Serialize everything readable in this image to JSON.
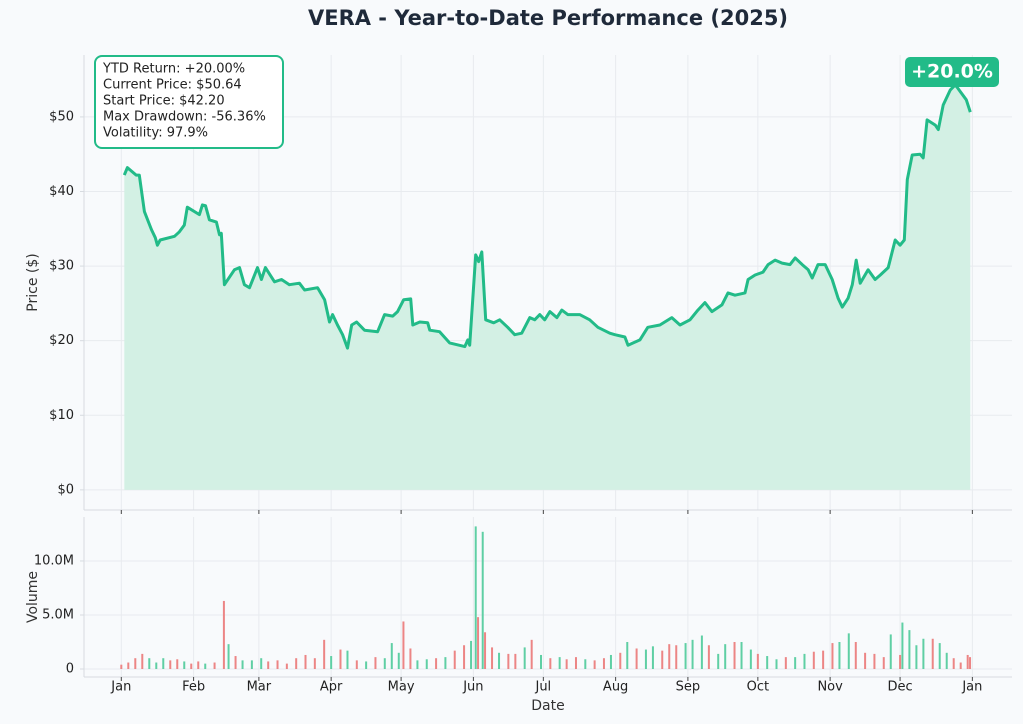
{
  "chart_data": [
    {
      "type": "line",
      "title": "VERA - Year-to-Date Performance (2025)",
      "ylabel": "Price ($)",
      "stats": [
        "YTD Return: +20.00%",
        "Current Price: $50.64",
        "Start Price: $42.20",
        "Max Drawdown: -56.36%",
        "Volatility: 97.9%"
      ],
      "badge": "+20.0%",
      "color": "#22bb88",
      "fill_color": "#d3f0e4",
      "grid": true,
      "x": [
        1.3,
        2.6,
        6.4,
        7.7,
        9.9,
        12.9,
        14.6,
        15.5,
        16.7,
        22.8,
        24.9,
        27,
        28.3,
        33.5,
        34.8,
        36.1,
        37.8,
        40.8,
        42.1,
        42.9,
        44.2,
        48.5,
        50.7,
        52.8,
        55,
        58.4,
        60.1,
        61.8,
        65.7,
        68.7,
        72.1,
        76.4,
        78.6,
        84.2,
        87.2,
        89.3,
        90.6,
        92.7,
        94.9,
        97,
        98.8,
        100.9,
        104.3,
        109.9,
        112.9,
        116.4,
        118.5,
        121.1,
        124.1,
        125,
        128,
        131.4,
        132.3,
        136.5,
        140.8,
        147.3,
        148.6,
        149.4,
        152,
        153.3,
        154.6,
        156.3,
        159.7,
        162.3,
        165.7,
        168.7,
        171.7,
        175.2,
        177.3,
        179.5,
        181.6,
        183.8,
        186.8,
        188.9,
        191.5,
        196.6,
        200.9,
        204.4,
        209.5,
        211.7,
        216,
        217.3,
        222.4,
        225.8,
        231,
        236.1,
        239.6,
        243.9,
        247.3,
        250.3,
        253.3,
        257.6,
        260.2,
        263.2,
        267.5,
        268.8,
        271.8,
        275.2,
        277.4,
        280.4,
        283.4,
        286.8,
        289,
        292,
        294.6,
        296.3,
        298.8,
        301.9,
        304.9,
        307.4,
        309.2,
        311.7,
        313.5,
        315.2,
        316.9,
        320.3,
        323.3,
        325.5,
        328.9,
        331.9,
        334,
        335.8,
        337.1,
        339.2,
        342.6,
        343.9,
        345.6,
        349.1,
        350.4,
        352.5,
        355.5,
        357.7,
        359.8,
        362.4,
        364.1
      ],
      "values": [
        42.2,
        43.2,
        42.2,
        42.2,
        37.3,
        34.9,
        33.8,
        32.8,
        33.5,
        34.0,
        34.6,
        35.5,
        37.9,
        36.9,
        38.2,
        38.1,
        36.2,
        35.9,
        34.2,
        34.4,
        27.5,
        29.5,
        29.8,
        27.5,
        27.1,
        29.8,
        28.2,
        29.8,
        27.9,
        28.2,
        27.5,
        27.7,
        26.8,
        27.1,
        25.5,
        22.5,
        23.5,
        22.1,
        20.8,
        19.0,
        22.1,
        22.5,
        21.4,
        21.2,
        23.5,
        23.3,
        23.9,
        25.5,
        25.6,
        22.1,
        22.5,
        22.4,
        21.4,
        21.2,
        19.7,
        19.2,
        20.1,
        19.4,
        31.5,
        30.6,
        31.9,
        22.8,
        22.4,
        22.8,
        21.8,
        20.8,
        21.0,
        23.1,
        22.8,
        23.5,
        22.8,
        23.9,
        23.1,
        24.1,
        23.5,
        23.5,
        22.8,
        21.8,
        21.0,
        20.8,
        20.5,
        19.4,
        20.1,
        21.8,
        22.1,
        23.1,
        22.1,
        22.8,
        24.1,
        25.1,
        23.9,
        24.8,
        26.4,
        26.1,
        26.4,
        28.2,
        28.8,
        29.2,
        30.2,
        30.8,
        30.4,
        30.2,
        31.1,
        30.2,
        29.5,
        28.4,
        30.2,
        30.2,
        28.2,
        25.7,
        24.5,
        25.7,
        27.5,
        30.8,
        27.7,
        29.5,
        28.2,
        28.8,
        29.8,
        33.5,
        32.8,
        33.5,
        41.6,
        44.9,
        45.0,
        44.5,
        49.6,
        48.9,
        48.3,
        51.6,
        53.6,
        54.3,
        53.4,
        52.3,
        50.64
      ],
      "xlim": [
        -16,
        382
      ],
      "ylim": [
        -2.7,
        58.3
      ],
      "yticks": [
        {
          "value": 0,
          "label": "$0"
        },
        {
          "value": 10,
          "label": "$10"
        },
        {
          "value": 20,
          "label": "$20"
        },
        {
          "value": 30,
          "label": "$30"
        },
        {
          "value": 40,
          "label": "$40"
        },
        {
          "value": 50,
          "label": "$50"
        }
      ]
    },
    {
      "type": "bar",
      "xlabel": "Date",
      "ylabel": "Volume",
      "grid": true,
      "x": [
        0,
        3,
        6,
        9,
        12,
        15,
        18,
        21,
        24,
        27,
        30,
        33,
        36,
        40,
        44,
        46,
        49,
        52,
        56,
        60,
        63,
        67,
        71,
        75,
        79,
        83,
        87,
        90,
        94,
        97,
        101,
        105,
        109,
        113,
        116,
        119,
        121,
        124,
        127,
        131,
        135,
        139,
        143,
        147,
        150,
        152,
        153,
        155,
        156,
        159,
        162,
        166,
        169,
        173,
        176,
        180,
        184,
        188,
        191,
        195,
        199,
        203,
        207,
        210,
        214,
        217,
        221,
        225,
        228,
        232,
        235,
        238,
        242,
        245,
        249,
        252,
        256,
        259,
        263,
        266,
        270,
        273,
        277,
        281,
        285,
        289,
        293,
        297,
        301,
        305,
        308,
        312,
        315,
        319,
        323,
        327,
        330,
        334,
        335,
        338,
        341,
        344,
        348,
        351,
        354,
        357,
        360,
        363,
        364
      ],
      "values": [
        0.4,
        0.6,
        1.0,
        1.4,
        1.0,
        0.6,
        1.0,
        0.8,
        0.9,
        0.7,
        0.5,
        0.7,
        0.5,
        0.6,
        6.3,
        2.3,
        1.2,
        0.8,
        0.8,
        1.0,
        0.7,
        0.8,
        0.5,
        1.0,
        1.3,
        1.0,
        2.7,
        1.2,
        1.8,
        1.7,
        0.8,
        0.7,
        1.1,
        1.0,
        2.4,
        1.5,
        4.4,
        1.9,
        0.8,
        0.9,
        1.0,
        1.1,
        1.7,
        2.2,
        2.6,
        13.2,
        4.8,
        12.7,
        3.4,
        2.0,
        1.5,
        1.4,
        1.4,
        2.0,
        2.7,
        1.3,
        1.0,
        1.1,
        0.9,
        1.1,
        0.9,
        0.8,
        1.0,
        1.3,
        1.5,
        2.5,
        1.9,
        1.8,
        2.1,
        1.7,
        2.3,
        2.2,
        2.4,
        2.7,
        3.1,
        2.2,
        1.4,
        2.3,
        2.5,
        2.5,
        1.8,
        1.4,
        1.2,
        0.9,
        1.1,
        1.1,
        1.4,
        1.6,
        1.7,
        2.4,
        2.5,
        3.3,
        2.5,
        1.5,
        1.4,
        1.1,
        3.2,
        1.3,
        4.3,
        3.6,
        2.2,
        2.8,
        2.8,
        2.4,
        1.5,
        1.0,
        0.6,
        1.3,
        1.1
      ],
      "colors": [
        "#ec8585",
        "#ec8585",
        "#ec8585",
        "#ec8585",
        "#5fcfa4",
        "#5fcfa4",
        "#5fcfa4",
        "#ec8585",
        "#ec8585",
        "#5fcfa4",
        "#ec8585",
        "#ec8585",
        "#5fcfa4",
        "#ec8585",
        "#ec8585",
        "#5fcfa4",
        "#ec8585",
        "#5fcfa4",
        "#5fcfa4",
        "#5fcfa4",
        "#ec8585",
        "#ec8585",
        "#ec8585",
        "#ec8585",
        "#ec8585",
        "#ec8585",
        "#ec8585",
        "#5fcfa4",
        "#ec8585",
        "#5fcfa4",
        "#ec8585",
        "#5fcfa4",
        "#ec8585",
        "#5fcfa4",
        "#5fcfa4",
        "#5fcfa4",
        "#ec8585",
        "#ec8585",
        "#5fcfa4",
        "#5fcfa4",
        "#ec8585",
        "#5fcfa4",
        "#ec8585",
        "#ec8585",
        "#5fcfa4",
        "#5fcfa4",
        "#ec8585",
        "#5fcfa4",
        "#ec8585",
        "#ec8585",
        "#5fcfa4",
        "#ec8585",
        "#ec8585",
        "#5fcfa4",
        "#ec8585",
        "#5fcfa4",
        "#ec8585",
        "#5fcfa4",
        "#ec8585",
        "#ec8585",
        "#5fcfa4",
        "#ec8585",
        "#ec8585",
        "#5fcfa4",
        "#ec8585",
        "#5fcfa4",
        "#ec8585",
        "#5fcfa4",
        "#5fcfa4",
        "#ec8585",
        "#ec8585",
        "#ec8585",
        "#5fcfa4",
        "#5fcfa4",
        "#5fcfa4",
        "#ec8585",
        "#5fcfa4",
        "#5fcfa4",
        "#ec8585",
        "#5fcfa4",
        "#5fcfa4",
        "#ec8585",
        "#5fcfa4",
        "#5fcfa4",
        "#ec8585",
        "#5fcfa4",
        "#5fcfa4",
        "#ec8585",
        "#ec8585",
        "#ec8585",
        "#5fcfa4",
        "#5fcfa4",
        "#ec8585",
        "#ec8585",
        "#ec8585",
        "#ec8585",
        "#5fcfa4",
        "#ec8585",
        "#5fcfa4",
        "#5fcfa4",
        "#5fcfa4",
        "#5fcfa4",
        "#ec8585",
        "#5fcfa4",
        "#5fcfa4",
        "#ec8585",
        "#ec8585",
        "#ec8585",
        "#ec8585"
      ],
      "xlim": [
        -16,
        382
      ],
      "ylim": [
        -0.74,
        14.07
      ],
      "xticks": [
        {
          "value": 0,
          "label": "Jan"
        },
        {
          "value": 31,
          "label": "Feb"
        },
        {
          "value": 59,
          "label": "Mar"
        },
        {
          "value": 90,
          "label": "Apr"
        },
        {
          "value": 120,
          "label": "May"
        },
        {
          "value": 151,
          "label": "Jun"
        },
        {
          "value": 181,
          "label": "Jul"
        },
        {
          "value": 212,
          "label": "Aug"
        },
        {
          "value": 243,
          "label": "Sep"
        },
        {
          "value": 273,
          "label": "Oct"
        },
        {
          "value": 304,
          "label": "Nov"
        },
        {
          "value": 334,
          "label": "Dec"
        },
        {
          "value": 365,
          "label": "Jan"
        }
      ],
      "yticks": [
        0,
        {
          "value": 5,
          "label": "5.0M"
        },
        {
          "value": 10,
          "label": "10.0M"
        }
      ]
    }
  ]
}
